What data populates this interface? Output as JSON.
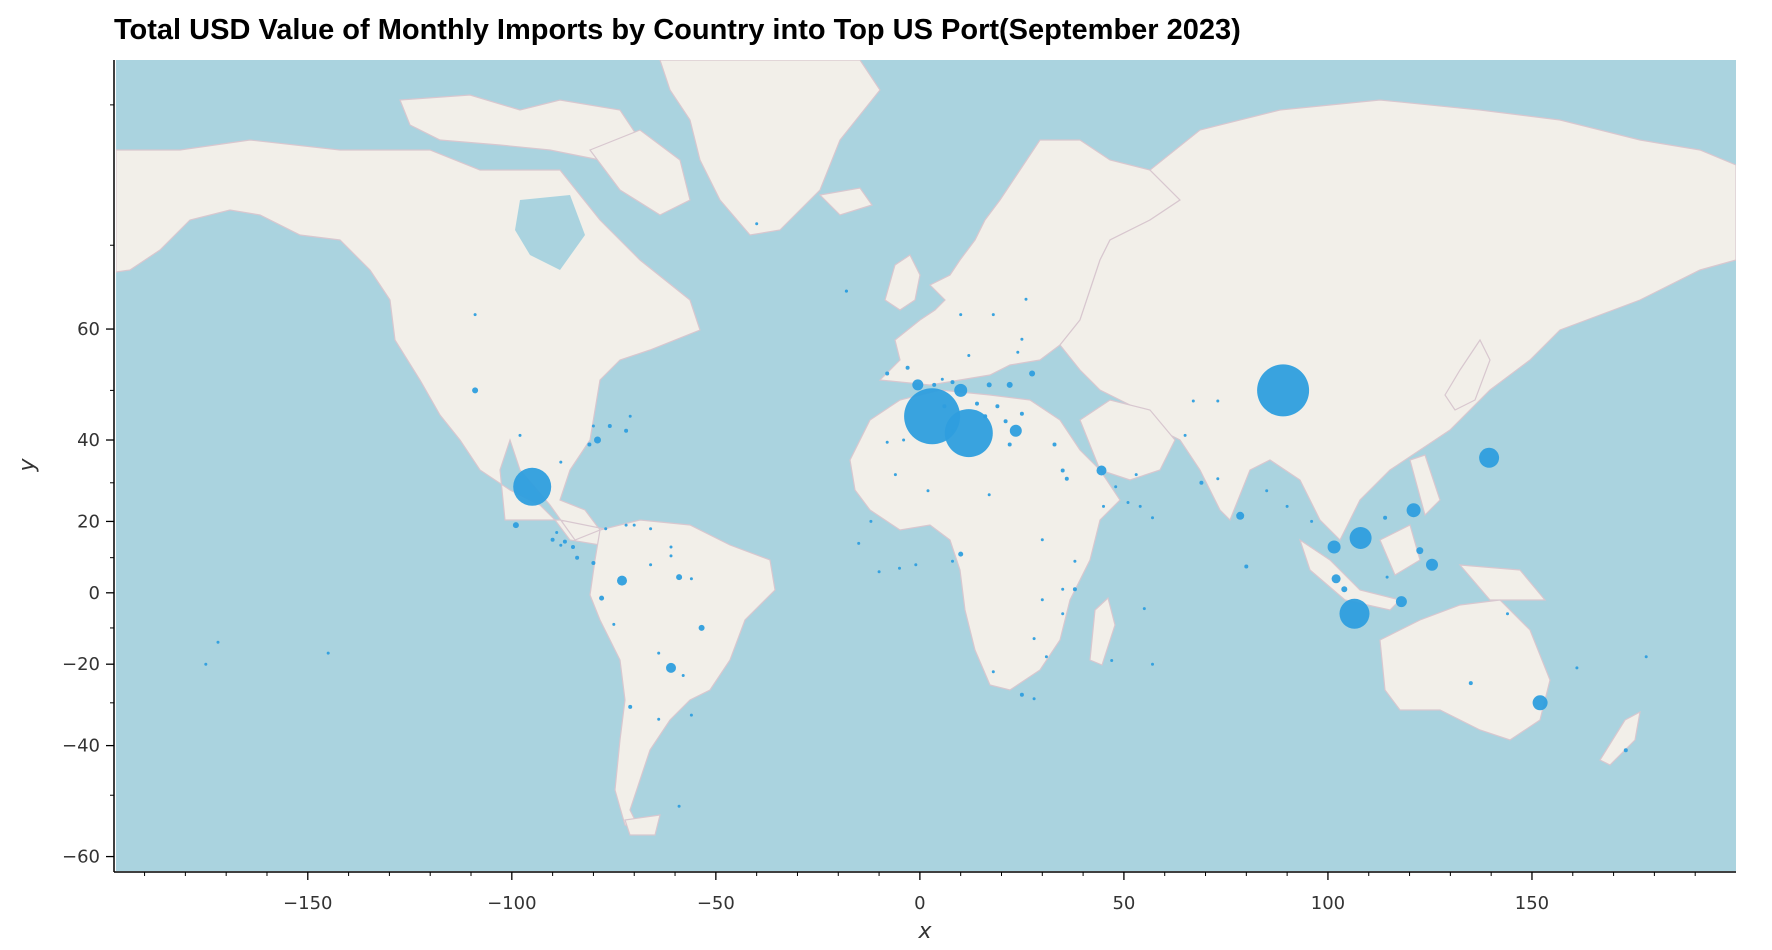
{
  "title": "Total USD Value of Monthly Imports by Country into Top US Port(September 2023)",
  "colors": {
    "ocean": "#aad3df",
    "land": "#f2efe9",
    "border": "#d8c7cf",
    "bubble": "#2e9ede"
  },
  "chart_data": {
    "type": "scatter",
    "title": "Total USD Value of Monthly Imports by Country into Top US Port(September 2023)",
    "xlabel": "x",
    "ylabel": "y",
    "xlim": [
      -197,
      200
    ],
    "ylim": [
      -62,
      82
    ],
    "y_scale": "web-mercator",
    "x_ticks": [
      -150,
      -100,
      -50,
      0,
      50,
      100,
      150
    ],
    "y_ticks": [
      -60,
      -40,
      -20,
      0,
      20,
      40,
      60
    ],
    "x_tick_labels": [
      "−150",
      "−100",
      "−50",
      "0",
      "50",
      "100",
      "150"
    ],
    "y_tick_labels": [
      "−60",
      "−40",
      "−20",
      "0",
      "20",
      "40",
      "60"
    ],
    "basemap": "world map tiles",
    "points": [
      {
        "x": 89,
        "y": 50,
        "size": 52
      },
      {
        "x": 3,
        "y": 45,
        "size": 56
      },
      {
        "x": 12,
        "y": 41.5,
        "size": 48
      },
      {
        "x": -95,
        "y": 29,
        "size": 38
      },
      {
        "x": 106.5,
        "y": -6,
        "size": 30
      },
      {
        "x": 139.5,
        "y": 36,
        "size": 20
      },
      {
        "x": 108,
        "y": 15.5,
        "size": 22
      },
      {
        "x": 23.5,
        "y": 42,
        "size": 12
      },
      {
        "x": 121,
        "y": 23,
        "size": 14
      },
      {
        "x": 10,
        "y": 50,
        "size": 13
      },
      {
        "x": -0.5,
        "y": 51,
        "size": 11
      },
      {
        "x": 152,
        "y": -30,
        "size": 15
      },
      {
        "x": 101.5,
        "y": 13,
        "size": 13
      },
      {
        "x": 125.5,
        "y": 8,
        "size": 12
      },
      {
        "x": 118,
        "y": -2.5,
        "size": 11
      },
      {
        "x": 44.5,
        "y": 33,
        "size": 10
      },
      {
        "x": -73,
        "y": 3.5,
        "size": 10
      },
      {
        "x": -61,
        "y": -21,
        "size": 10
      },
      {
        "x": 102,
        "y": 4,
        "size": 9
      },
      {
        "x": 78.5,
        "y": 21.5,
        "size": 8
      },
      {
        "x": -79,
        "y": 40,
        "size": 7
      },
      {
        "x": 122.5,
        "y": 12,
        "size": 7
      },
      {
        "x": -99,
        "y": 19,
        "size": 6
      },
      {
        "x": 22,
        "y": 51,
        "size": 6
      },
      {
        "x": 104,
        "y": 1,
        "size": 6
      },
      {
        "x": -59,
        "y": 4.5,
        "size": 6
      },
      {
        "x": -53.5,
        "y": -10,
        "size": 6
      },
      {
        "x": -109,
        "y": 50,
        "size": 6
      },
      {
        "x": -78,
        "y": -1.5,
        "size": 5
      },
      {
        "x": 27.5,
        "y": 53,
        "size": 6
      },
      {
        "x": 17,
        "y": 51,
        "size": 5
      },
      {
        "x": 8,
        "y": 51.5,
        "size": 4
      },
      {
        "x": 3.5,
        "y": 51,
        "size": 4
      },
      {
        "x": -3,
        "y": 54,
        "size": 4
      },
      {
        "x": -8,
        "y": 53,
        "size": 4
      },
      {
        "x": 6,
        "y": 47,
        "size": 4
      },
      {
        "x": 14,
        "y": 47.5,
        "size": 4
      },
      {
        "x": 19,
        "y": 47,
        "size": 4
      },
      {
        "x": 21,
        "y": 44,
        "size": 4
      },
      {
        "x": 25,
        "y": 45.5,
        "size": 4
      },
      {
        "x": 16,
        "y": 45,
        "size": 4
      },
      {
        "x": 22,
        "y": 39,
        "size": 4
      },
      {
        "x": 33,
        "y": 39,
        "size": 4
      },
      {
        "x": 35,
        "y": 33,
        "size": 4
      },
      {
        "x": 36,
        "y": 31,
        "size": 4
      },
      {
        "x": 25,
        "y": 58.5,
        "size": 3
      },
      {
        "x": 24,
        "y": 56.5,
        "size": 3
      },
      {
        "x": 18,
        "y": 62,
        "size": 3
      },
      {
        "x": 10,
        "y": 62,
        "size": 3
      },
      {
        "x": 26,
        "y": 64,
        "size": 3
      },
      {
        "x": -18,
        "y": 65,
        "size": 3
      },
      {
        "x": 12,
        "y": 56,
        "size": 3
      },
      {
        "x": 5.5,
        "y": 52,
        "size": 3
      },
      {
        "x": -4,
        "y": 40,
        "size": 3
      },
      {
        "x": -8,
        "y": 39.5,
        "size": 3
      },
      {
        "x": 8,
        "y": 42,
        "size": 3
      },
      {
        "x": -6,
        "y": 32,
        "size": 3
      },
      {
        "x": -72,
        "y": 42,
        "size": 4
      },
      {
        "x": -76,
        "y": 43,
        "size": 4
      },
      {
        "x": -71,
        "y": 45,
        "size": 3
      },
      {
        "x": -80,
        "y": 43,
        "size": 3
      },
      {
        "x": -81,
        "y": 39,
        "size": 4
      },
      {
        "x": -88,
        "y": 35,
        "size": 3
      },
      {
        "x": -98,
        "y": 41,
        "size": 3
      },
      {
        "x": -90,
        "y": 15,
        "size": 4
      },
      {
        "x": -87,
        "y": 14.5,
        "size": 4
      },
      {
        "x": -85,
        "y": 13,
        "size": 4
      },
      {
        "x": -88,
        "y": 13.5,
        "size": 3
      },
      {
        "x": -84,
        "y": 10,
        "size": 4
      },
      {
        "x": -80,
        "y": 8.5,
        "size": 4
      },
      {
        "x": -89,
        "y": 17,
        "size": 3
      },
      {
        "x": -77,
        "y": 18,
        "size": 3
      },
      {
        "x": -72,
        "y": 19,
        "size": 3
      },
      {
        "x": -70,
        "y": 19,
        "size": 3
      },
      {
        "x": -66,
        "y": 18,
        "size": 3
      },
      {
        "x": -61,
        "y": 13,
        "size": 3
      },
      {
        "x": -61,
        "y": 10.5,
        "size": 3
      },
      {
        "x": -66,
        "y": 8,
        "size": 3
      },
      {
        "x": -56,
        "y": 4,
        "size": 3
      },
      {
        "x": -75,
        "y": -9,
        "size": 3
      },
      {
        "x": -71,
        "y": -31,
        "size": 4
      },
      {
        "x": -64,
        "y": -17,
        "size": 3
      },
      {
        "x": -58,
        "y": -23,
        "size": 3
      },
      {
        "x": -56,
        "y": -33,
        "size": 3
      },
      {
        "x": -64,
        "y": -34,
        "size": 3
      },
      {
        "x": -59,
        "y": -52,
        "size": 3
      },
      {
        "x": 10,
        "y": 11,
        "size": 5
      },
      {
        "x": 8,
        "y": 9,
        "size": 3
      },
      {
        "x": -1,
        "y": 8,
        "size": 3
      },
      {
        "x": -5,
        "y": 7,
        "size": 3
      },
      {
        "x": -10,
        "y": 6,
        "size": 3
      },
      {
        "x": -15,
        "y": 14,
        "size": 3
      },
      {
        "x": -12,
        "y": 20,
        "size": 3
      },
      {
        "x": 2,
        "y": 28,
        "size": 3
      },
      {
        "x": 17,
        "y": 27,
        "size": 3
      },
      {
        "x": 30,
        "y": 15,
        "size": 3
      },
      {
        "x": 38,
        "y": 9,
        "size": 3
      },
      {
        "x": 38,
        "y": 1,
        "size": 4
      },
      {
        "x": 35,
        "y": 1,
        "size": 3
      },
      {
        "x": 30,
        "y": -2,
        "size": 3
      },
      {
        "x": 35,
        "y": -6,
        "size": 3
      },
      {
        "x": 28,
        "y": -13,
        "size": 3
      },
      {
        "x": 31,
        "y": -18,
        "size": 3
      },
      {
        "x": 25,
        "y": -28,
        "size": 4
      },
      {
        "x": 28,
        "y": -29,
        "size": 3
      },
      {
        "x": 18,
        "y": -22,
        "size": 3
      },
      {
        "x": 47,
        "y": -19,
        "size": 3
      },
      {
        "x": 57,
        "y": -20,
        "size": 3
      },
      {
        "x": 55,
        "y": -4.5,
        "size": 3
      },
      {
        "x": 48,
        "y": 29,
        "size": 3
      },
      {
        "x": 51,
        "y": 25,
        "size": 3
      },
      {
        "x": 54,
        "y": 24,
        "size": 3
      },
      {
        "x": 57,
        "y": 21,
        "size": 3
      },
      {
        "x": 45,
        "y": 24,
        "size": 3
      },
      {
        "x": 53,
        "y": 32,
        "size": 3
      },
      {
        "x": 69,
        "y": 30,
        "size": 4
      },
      {
        "x": 73,
        "y": 31,
        "size": 3
      },
      {
        "x": 67,
        "y": 48,
        "size": 3
      },
      {
        "x": 73,
        "y": 48,
        "size": 3
      },
      {
        "x": 65,
        "y": 41,
        "size": 3
      },
      {
        "x": 80,
        "y": 7.5,
        "size": 4
      },
      {
        "x": 85,
        "y": 28,
        "size": 3
      },
      {
        "x": 90,
        "y": 24,
        "size": 3
      },
      {
        "x": 96,
        "y": 20,
        "size": 3
      },
      {
        "x": 114,
        "y": 21,
        "size": 4
      },
      {
        "x": 114.5,
        "y": 4.5,
        "size": 3
      },
      {
        "x": 135,
        "y": -25,
        "size": 4
      },
      {
        "x": 144,
        "y": -6,
        "size": 3
      },
      {
        "x": 161,
        "y": -21,
        "size": 3
      },
      {
        "x": 178,
        "y": -18,
        "size": 3
      },
      {
        "x": 173,
        "y": -41,
        "size": 4
      },
      {
        "x": -172,
        "y": -14,
        "size": 3
      },
      {
        "x": -175,
        "y": -20,
        "size": 3
      },
      {
        "x": -145,
        "y": -17,
        "size": 3
      },
      {
        "x": -109,
        "y": 62,
        "size": 3
      },
      {
        "x": -40,
        "y": 72,
        "size": 3
      },
      {
        "x": -18,
        "y": 65,
        "size": 3
      }
    ]
  }
}
